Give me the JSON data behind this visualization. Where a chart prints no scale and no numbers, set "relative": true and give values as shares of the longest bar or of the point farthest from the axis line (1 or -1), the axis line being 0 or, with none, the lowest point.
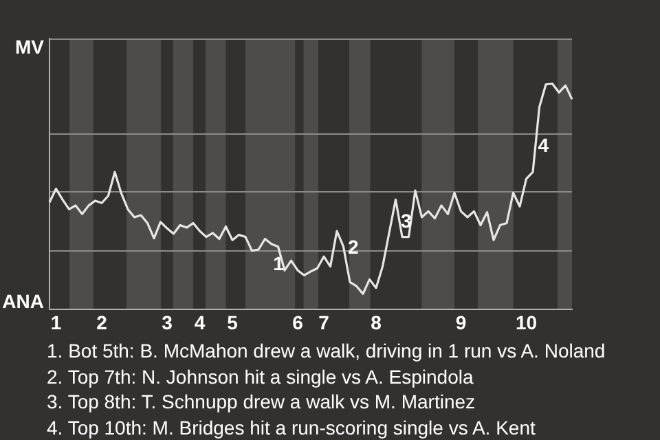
{
  "chart_data": {
    "type": "line",
    "relative": true,
    "categories": [
      null,
      "1",
      null,
      null,
      null,
      null,
      null,
      null,
      "2",
      null,
      null,
      null,
      null,
      null,
      null,
      null,
      null,
      null,
      "3",
      null,
      null,
      null,
      null,
      "4",
      null,
      null,
      null,
      null,
      "5",
      null,
      null,
      null,
      null,
      null,
      null,
      null,
      null,
      null,
      "6",
      null,
      null,
      null,
      "7",
      null,
      null,
      null,
      null,
      null,
      null,
      null,
      "8",
      null,
      null,
      null,
      null,
      null,
      null,
      null,
      null,
      null,
      null,
      null,
      null,
      "9",
      null,
      null,
      null,
      null,
      null,
      null,
      null,
      null,
      null,
      "10",
      null,
      null,
      null,
      null,
      null,
      null,
      null
    ],
    "series": [
      {
        "color": "#e6e6e6",
        "values": [
          0.475,
          0.535,
          0.487,
          0.444,
          0.461,
          0.423,
          0.461,
          0.482,
          0.472,
          0.504,
          0.609,
          0.514,
          0.444,
          0.409,
          0.418,
          0.383,
          0.316,
          0.388,
          0.36,
          0.336,
          0.374,
          0.363,
          0.383,
          0.348,
          0.322,
          0.339,
          0.313,
          0.368,
          0.308,
          0.331,
          0.322,
          0.261,
          0.266,
          0.313,
          0.29,
          0.279,
          0.174,
          0.217,
          0.174,
          0.152,
          0.169,
          0.183,
          0.235,
          0.191,
          0.348,
          0.279,
          0.122,
          0.104,
          0.07,
          0.134,
          0.096,
          0.191,
          0.339,
          0.487,
          0.322,
          0.322,
          0.527,
          0.409,
          0.435,
          0.404,
          0.461,
          0.423,
          0.517,
          0.435,
          0.409,
          0.435,
          0.374,
          0.431,
          0.308,
          0.374,
          0.383,
          0.517,
          0.457,
          0.579,
          0.609,
          0.896,
          0.997,
          1,
          0.961,
          0.992,
          0.931
        ]
      }
    ],
    "marker": "none",
    "ref_lines": [
      {
        "axis": "y",
        "value": 0.261,
        "color": "#8a8a8a"
      },
      {
        "axis": "y",
        "value": 0.522,
        "color": "#8a8a8a"
      },
      {
        "axis": "y",
        "value": 0.783,
        "color": "#8a8a8a"
      }
    ],
    "annotations": [
      "MV",
      "ANA",
      {
        "text": "1",
        "y": 0.198
      },
      {
        "text": "2",
        "y": 0.271
      },
      {
        "text": "3",
        "y": 0.386
      },
      {
        "text": "4",
        "y": 0.72
      },
      "1. Bot 5th: B. McMahon drew a walk, driving in 1 run vs A. Noland",
      "2. Top 7th: N. Johnson hit a single vs A. Espindola",
      "3. Top 8th: T. Schnupp drew a walk vs M. Martinez",
      "4. Top 10th: M. Bridges hit a run-scoring single vs A. Kent"
    ]
  }
}
